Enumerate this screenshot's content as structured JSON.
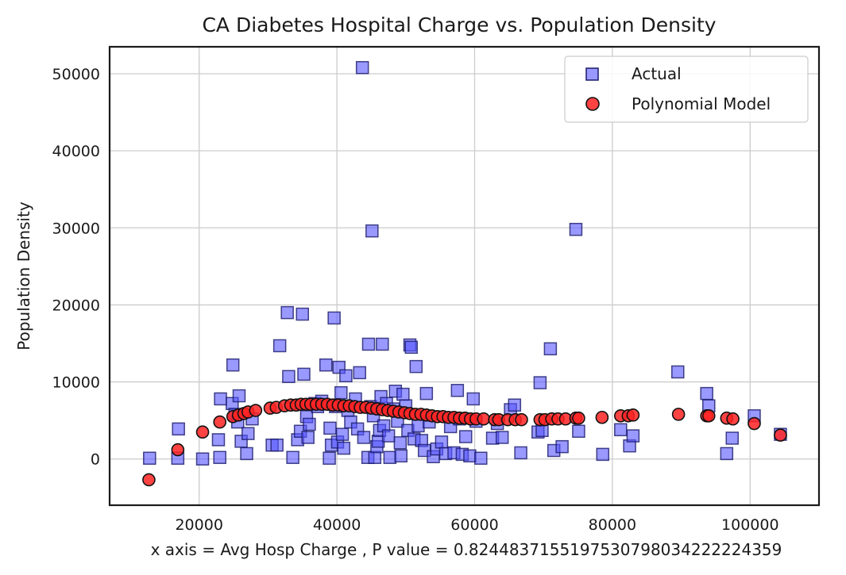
{
  "chart_data": {
    "type": "scatter",
    "title": "CA Diabetes Hospital Charge vs. Population Density",
    "xlabel": "x axis = Avg Hosp Charge , P value = 0.8244837155197530798034222224359",
    "ylabel": "Population Density",
    "xlim": [
      7000,
      110000
    ],
    "ylim": [
      -6000,
      53500
    ],
    "xticks": [
      20000,
      40000,
      60000,
      80000,
      100000
    ],
    "yticks": [
      0,
      10000,
      20000,
      30000,
      40000,
      50000
    ],
    "grid": true,
    "legend_position": "top-right",
    "series": [
      {
        "name": "Actual",
        "marker": "square",
        "color": "#5555ff",
        "points": [
          [
            12800,
            100
          ],
          [
            17000,
            3900
          ],
          [
            16900,
            100
          ],
          [
            20500,
            0
          ],
          [
            22800,
            2500
          ],
          [
            23000,
            200
          ],
          [
            23100,
            7800
          ],
          [
            24900,
            12200
          ],
          [
            24800,
            7200
          ],
          [
            25200,
            5800
          ],
          [
            25600,
            4800
          ],
          [
            25800,
            8200
          ],
          [
            26100,
            2300
          ],
          [
            26900,
            700
          ],
          [
            27100,
            3300
          ],
          [
            27700,
            5200
          ],
          [
            30600,
            1800
          ],
          [
            31300,
            1800
          ],
          [
            31700,
            14700
          ],
          [
            32800,
            19000
          ],
          [
            33000,
            10700
          ],
          [
            33600,
            200
          ],
          [
            34300,
            2500
          ],
          [
            34700,
            3600
          ],
          [
            35000,
            18800
          ],
          [
            35200,
            11000
          ],
          [
            35600,
            5500
          ],
          [
            35800,
            2800
          ],
          [
            36000,
            4500
          ],
          [
            36800,
            7200
          ],
          [
            37200,
            6800
          ],
          [
            37800,
            7500
          ],
          [
            38400,
            12200
          ],
          [
            38900,
            100
          ],
          [
            39000,
            4000
          ],
          [
            39200,
            1800
          ],
          [
            39600,
            18300
          ],
          [
            39800,
            6800
          ],
          [
            40100,
            2200
          ],
          [
            40300,
            11900
          ],
          [
            40600,
            8600
          ],
          [
            40800,
            3200
          ],
          [
            41000,
            1400
          ],
          [
            41300,
            10800
          ],
          [
            41600,
            6300
          ],
          [
            42000,
            4800
          ],
          [
            42700,
            7800
          ],
          [
            43000,
            3900
          ],
          [
            43300,
            11200
          ],
          [
            43700,
            50800
          ],
          [
            43900,
            2800
          ],
          [
            44500,
            200
          ],
          [
            44600,
            14900
          ],
          [
            44900,
            6800
          ],
          [
            45100,
            29600
          ],
          [
            45300,
            5600
          ],
          [
            45500,
            200
          ],
          [
            45800,
            1600
          ],
          [
            46000,
            2300
          ],
          [
            46200,
            3700
          ],
          [
            46400,
            8100
          ],
          [
            46600,
            14900
          ],
          [
            46800,
            4300
          ],
          [
            47200,
            7200
          ],
          [
            47500,
            3000
          ],
          [
            47700,
            200
          ],
          [
            48200,
            6500
          ],
          [
            48500,
            8800
          ],
          [
            48800,
            4900
          ],
          [
            49200,
            2100
          ],
          [
            49300,
            400
          ],
          [
            49600,
            8400
          ],
          [
            50000,
            6900
          ],
          [
            50300,
            3700
          ],
          [
            50600,
            14800
          ],
          [
            50800,
            14500
          ],
          [
            51200,
            2600
          ],
          [
            51500,
            12000
          ],
          [
            51800,
            4300
          ],
          [
            52300,
            2400
          ],
          [
            52700,
            1100
          ],
          [
            53000,
            8500
          ],
          [
            53400,
            4800
          ],
          [
            54000,
            300
          ],
          [
            54500,
            1300
          ],
          [
            55200,
            2200
          ],
          [
            55800,
            700
          ],
          [
            56500,
            4200
          ],
          [
            57000,
            800
          ],
          [
            57500,
            8900
          ],
          [
            57800,
            5200
          ],
          [
            58200,
            600
          ],
          [
            58700,
            2900
          ],
          [
            59300,
            400
          ],
          [
            59800,
            7800
          ],
          [
            60200,
            4900
          ],
          [
            60900,
            100
          ],
          [
            62600,
            2700
          ],
          [
            63300,
            4600
          ],
          [
            64000,
            2800
          ],
          [
            65200,
            6400
          ],
          [
            65800,
            7000
          ],
          [
            66700,
            800
          ],
          [
            69200,
            3500
          ],
          [
            69500,
            9900
          ],
          [
            69800,
            3700
          ],
          [
            71000,
            14300
          ],
          [
            71500,
            1100
          ],
          [
            72700,
            1600
          ],
          [
            74700,
            29800
          ],
          [
            75100,
            3600
          ],
          [
            78600,
            600
          ],
          [
            81200,
            3800
          ],
          [
            82500,
            1700
          ],
          [
            83000,
            3000
          ],
          [
            89500,
            11300
          ],
          [
            93700,
            8500
          ],
          [
            94000,
            6900
          ],
          [
            96600,
            700
          ],
          [
            97400,
            2700
          ],
          [
            100600,
            5600
          ],
          [
            104400,
            3200
          ]
        ]
      },
      {
        "name": "Polynomial Model",
        "marker": "circle",
        "color": "#ff2222",
        "points": [
          [
            12700,
            -2700
          ],
          [
            16900,
            1200
          ],
          [
            20500,
            3500
          ],
          [
            23000,
            4800
          ],
          [
            24900,
            5500
          ],
          [
            25700,
            5700
          ],
          [
            26500,
            5900
          ],
          [
            27100,
            6100
          ],
          [
            28200,
            6300
          ],
          [
            30300,
            6600
          ],
          [
            31200,
            6700
          ],
          [
            32400,
            6900
          ],
          [
            33300,
            7000
          ],
          [
            34100,
            7000
          ],
          [
            34800,
            7100
          ],
          [
            35500,
            7100
          ],
          [
            36200,
            7100
          ],
          [
            37000,
            7100
          ],
          [
            37800,
            7100
          ],
          [
            38600,
            7100
          ],
          [
            39400,
            7000
          ],
          [
            40200,
            7000
          ],
          [
            41000,
            6900
          ],
          [
            41800,
            6900
          ],
          [
            42600,
            6800
          ],
          [
            43400,
            6700
          ],
          [
            44200,
            6700
          ],
          [
            45000,
            6600
          ],
          [
            45800,
            6500
          ],
          [
            46600,
            6400
          ],
          [
            47400,
            6300
          ],
          [
            48200,
            6200
          ],
          [
            49000,
            6100
          ],
          [
            49800,
            6000
          ],
          [
            50600,
            5900
          ],
          [
            51400,
            5800
          ],
          [
            52200,
            5800
          ],
          [
            53000,
            5700
          ],
          [
            53800,
            5600
          ],
          [
            54600,
            5500
          ],
          [
            55400,
            5500
          ],
          [
            56200,
            5400
          ],
          [
            57000,
            5400
          ],
          [
            57800,
            5300
          ],
          [
            58600,
            5300
          ],
          [
            59400,
            5200
          ],
          [
            60200,
            5200
          ],
          [
            61300,
            5200
          ],
          [
            62900,
            5100
          ],
          [
            63500,
            5100
          ],
          [
            64800,
            5100
          ],
          [
            65900,
            5100
          ],
          [
            66800,
            5100
          ],
          [
            69500,
            5100
          ],
          [
            70200,
            5100
          ],
          [
            71200,
            5200
          ],
          [
            72100,
            5200
          ],
          [
            73200,
            5200
          ],
          [
            74700,
            5300
          ],
          [
            75100,
            5300
          ],
          [
            78500,
            5400
          ],
          [
            81200,
            5600
          ],
          [
            82300,
            5600
          ],
          [
            83000,
            5700
          ],
          [
            89600,
            5800
          ],
          [
            93700,
            5600
          ],
          [
            94000,
            5600
          ],
          [
            96600,
            5300
          ],
          [
            97500,
            5200
          ],
          [
            100600,
            4600
          ],
          [
            104400,
            3100
          ]
        ]
      }
    ]
  }
}
